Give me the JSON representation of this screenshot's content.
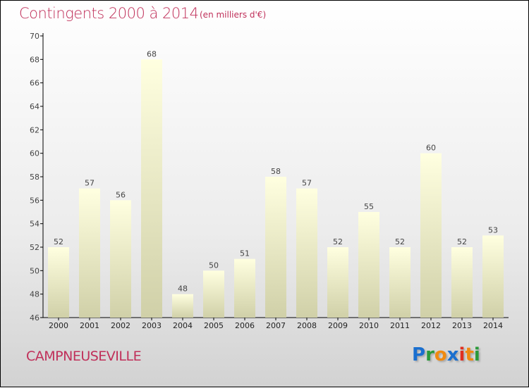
{
  "chart_data": {
    "type": "bar",
    "title": "Contingents 2000 à 2014",
    "subtitle": "(en milliers d'€)",
    "categories": [
      "2000",
      "2001",
      "2002",
      "2003",
      "2004",
      "2005",
      "2006",
      "2007",
      "2008",
      "2009",
      "2010",
      "2011",
      "2012",
      "2013",
      "2014"
    ],
    "values": [
      52,
      57,
      56,
      68,
      48,
      50,
      51,
      58,
      57,
      52,
      55,
      52,
      60,
      52,
      53
    ],
    "ylim": [
      46,
      70
    ],
    "yticks": [
      46,
      48,
      50,
      52,
      54,
      56,
      58,
      60,
      62,
      64,
      66,
      68,
      70
    ],
    "xlabel": "",
    "ylabel": ""
  },
  "footer": {
    "city": "CAMPNEUSEVILLE",
    "logo": "Proxiti"
  },
  "colors": {
    "title": "#c0305a",
    "bar_top": "#ffffe0",
    "bar_bottom": "#d0d0a8"
  }
}
